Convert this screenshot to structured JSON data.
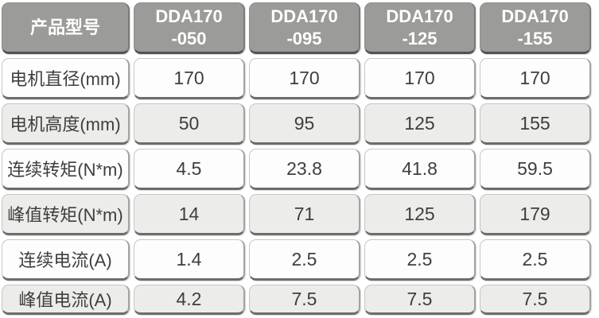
{
  "table": {
    "header": {
      "label_col": "产品型号",
      "models": [
        {
          "line1": "DDA170",
          "line2": "-050"
        },
        {
          "line1": "DDA170",
          "line2": "-095"
        },
        {
          "line1": "DDA170",
          "line2": "-125"
        },
        {
          "line1": "DDA170",
          "line2": "-155"
        }
      ]
    },
    "rows": [
      {
        "label": "电机直径(mm)",
        "values": [
          "170",
          "170",
          "170",
          "170"
        ]
      },
      {
        "label": "电机高度(mm)",
        "values": [
          "50",
          "95",
          "125",
          "155"
        ]
      },
      {
        "label": "连续转矩(N*m)",
        "values": [
          "4.5",
          "23.8",
          "41.8",
          "59.5"
        ]
      },
      {
        "label": "峰值转矩(N*m)",
        "values": [
          "14",
          "71",
          "125",
          "179"
        ]
      },
      {
        "label": "连续电流(A)",
        "values": [
          "1.4",
          "2.5",
          "2.5",
          "2.5"
        ]
      },
      {
        "label": "峰值电流(A)",
        "values": [
          "4.2",
          "7.5",
          "7.5",
          "7.5"
        ]
      }
    ]
  },
  "colors": {
    "header_bg": "#9b9b99",
    "header_text": "#ffffff",
    "row_odd_bg": "#fdfdfd",
    "row_even_bg": "#ececea",
    "cell_bottom_edge": "#6c6c6a",
    "body_text": "#3e3e3e"
  },
  "chart_data": {
    "type": "table",
    "title": "",
    "columns": [
      "产品型号",
      "DDA170-050",
      "DDA170-095",
      "DDA170-125",
      "DDA170-155"
    ],
    "rows": [
      [
        "电机直径(mm)",
        170,
        170,
        170,
        170
      ],
      [
        "电机高度(mm)",
        50,
        95,
        125,
        155
      ],
      [
        "连续转矩(N*m)",
        4.5,
        23.8,
        41.8,
        59.5
      ],
      [
        "峰值转矩(N*m)",
        14,
        71,
        125,
        179
      ],
      [
        "连续电流(A)",
        1.4,
        2.5,
        2.5,
        2.5
      ],
      [
        "峰值电流(A)",
        4.2,
        7.5,
        7.5,
        7.5
      ]
    ]
  }
}
